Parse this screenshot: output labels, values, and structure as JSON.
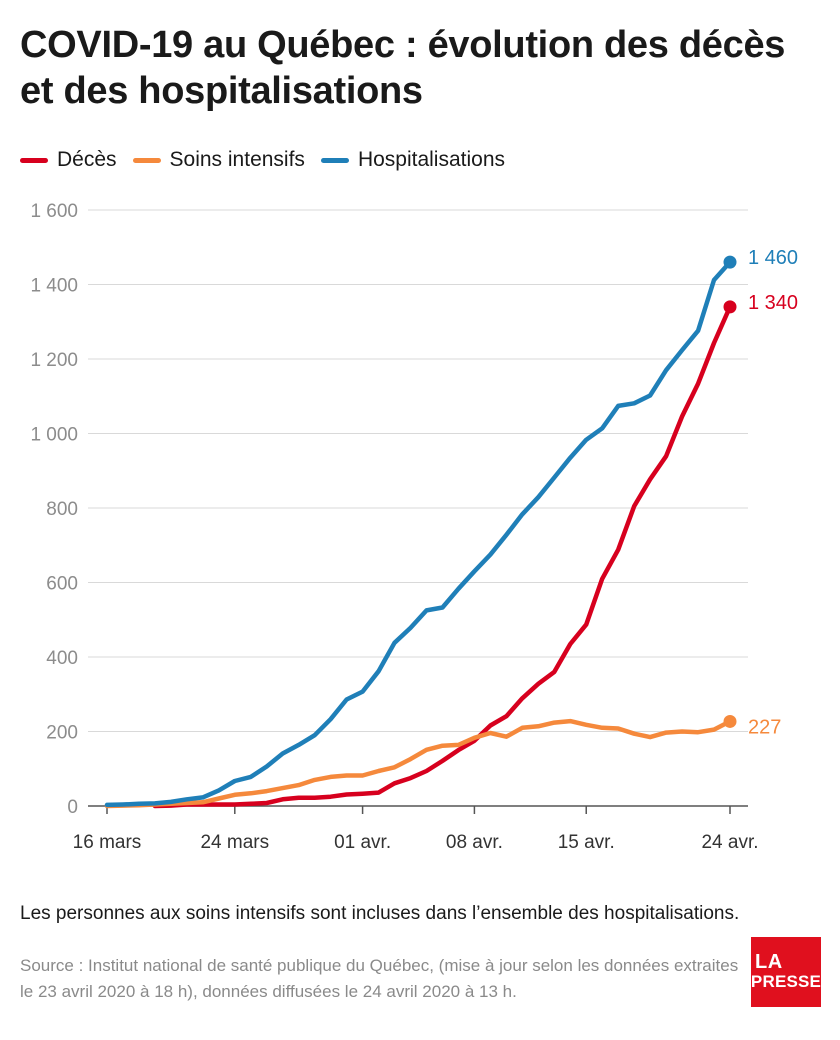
{
  "title": "COVID-19 au Québec : évolution des décès et des hospitalisations",
  "note": "Les personnes aux soins intensifs sont incluses dans l’ensemble des hospitalisations.",
  "source": "Source : Institut national de santé publique du Québec, (mise à jour selon les données extraites le 23 avril 2020 à 18 h), données diffusées le 24 avril 2020 à 13 h.",
  "logo": {
    "line1": "LA",
    "line2": "PRESSE"
  },
  "chart_data": {
    "type": "line",
    "title": "COVID-19 au Québec : évolution des décès et des hospitalisations",
    "xlabel": "",
    "ylabel": "",
    "ylim": [
      0,
      1600
    ],
    "yticks": [
      0,
      200,
      400,
      600,
      800,
      1000,
      1200,
      1400,
      1600
    ],
    "ytick_labels": [
      "0",
      "200",
      "400",
      "600",
      "800",
      "1 000",
      "1 200",
      "1 400",
      "1 600"
    ],
    "x_start": "2020-03-16",
    "x_end": "2020-04-24",
    "xticks": [
      "2020-03-16",
      "2020-03-24",
      "2020-04-01",
      "2020-04-08",
      "2020-04-15",
      "2020-04-24"
    ],
    "xtick_labels": [
      "16 mars",
      "24 mars",
      "01 avr.",
      "08 avr.",
      "15 avr.",
      "24 avr."
    ],
    "grid": true,
    "legend_position": "top-left",
    "series": [
      {
        "name": "Décès",
        "color": "#d7001e",
        "end_label": "1 340",
        "x": [
          "2020-03-19",
          "2020-03-20",
          "2020-03-21",
          "2020-03-22",
          "2020-03-23",
          "2020-03-24",
          "2020-03-25",
          "2020-03-26",
          "2020-03-27",
          "2020-03-28",
          "2020-03-29",
          "2020-03-30",
          "2020-03-31",
          "2020-04-01",
          "2020-04-02",
          "2020-04-03",
          "2020-04-04",
          "2020-04-05",
          "2020-04-06",
          "2020-04-07",
          "2020-04-08",
          "2020-04-09",
          "2020-04-10",
          "2020-04-11",
          "2020-04-12",
          "2020-04-13",
          "2020-04-14",
          "2020-04-15",
          "2020-04-16",
          "2020-04-17",
          "2020-04-18",
          "2020-04-19",
          "2020-04-20",
          "2020-04-21",
          "2020-04-22",
          "2020-04-23",
          "2020-04-24"
        ],
        "values": [
          0,
          1,
          4,
          4,
          4,
          4,
          6,
          8,
          18,
          22,
          22,
          25,
          31,
          33,
          36,
          61,
          75,
          94,
          121,
          150,
          175,
          216,
          241,
          289,
          328,
          360,
          435,
          487,
          610,
          688,
          805,
          877,
          939,
          1046,
          1134,
          1243,
          1340
        ]
      },
      {
        "name": "Soins intensifs",
        "color": "#f5893c",
        "end_label": "227",
        "x": [
          "2020-03-16",
          "2020-03-17",
          "2020-03-18",
          "2020-03-19",
          "2020-03-20",
          "2020-03-21",
          "2020-03-22",
          "2020-03-23",
          "2020-03-24",
          "2020-03-25",
          "2020-03-26",
          "2020-03-27",
          "2020-03-28",
          "2020-03-29",
          "2020-03-30",
          "2020-03-31",
          "2020-04-01",
          "2020-04-02",
          "2020-04-03",
          "2020-04-04",
          "2020-04-05",
          "2020-04-06",
          "2020-04-07",
          "2020-04-08",
          "2020-04-09",
          "2020-04-10",
          "2020-04-11",
          "2020-04-12",
          "2020-04-13",
          "2020-04-14",
          "2020-04-15",
          "2020-04-16",
          "2020-04-17",
          "2020-04-18",
          "2020-04-19",
          "2020-04-20",
          "2020-04-21",
          "2020-04-22",
          "2020-04-23",
          "2020-04-24"
        ],
        "values": [
          0,
          1,
          2,
          4,
          6,
          8,
          10,
          20,
          30,
          34,
          40,
          48,
          56,
          70,
          78,
          82,
          82,
          94,
          104,
          126,
          151,
          162,
          164,
          183,
          196,
          186,
          210,
          214,
          224,
          228,
          218,
          210,
          208,
          194,
          185,
          197,
          200,
          198,
          205,
          227
        ]
      },
      {
        "name": "Hospitalisations",
        "color": "#1f7fb8",
        "end_label": "1 460",
        "x": [
          "2020-03-16",
          "2020-03-17",
          "2020-03-18",
          "2020-03-19",
          "2020-03-20",
          "2020-03-21",
          "2020-03-22",
          "2020-03-23",
          "2020-03-24",
          "2020-03-25",
          "2020-03-26",
          "2020-03-27",
          "2020-03-28",
          "2020-03-29",
          "2020-03-30",
          "2020-03-31",
          "2020-04-01",
          "2020-04-02",
          "2020-04-03",
          "2020-04-04",
          "2020-04-05",
          "2020-04-06",
          "2020-04-07",
          "2020-04-08",
          "2020-04-09",
          "2020-04-10",
          "2020-04-11",
          "2020-04-12",
          "2020-04-13",
          "2020-04-14",
          "2020-04-15",
          "2020-04-16",
          "2020-04-17",
          "2020-04-18",
          "2020-04-19",
          "2020-04-20",
          "2020-04-21",
          "2020-04-22",
          "2020-04-23",
          "2020-04-24"
        ],
        "values": [
          3,
          4,
          6,
          7,
          11,
          18,
          23,
          42,
          67,
          78,
          106,
          141,
          164,
          190,
          233,
          286,
          307,
          362,
          438,
          478,
          525,
          533,
          583,
          630,
          675,
          728,
          783,
          829,
          882,
          935,
          983,
          1014,
          1074,
          1081,
          1102,
          1170,
          1224,
          1276,
          1412,
          1460
        ]
      }
    ]
  }
}
